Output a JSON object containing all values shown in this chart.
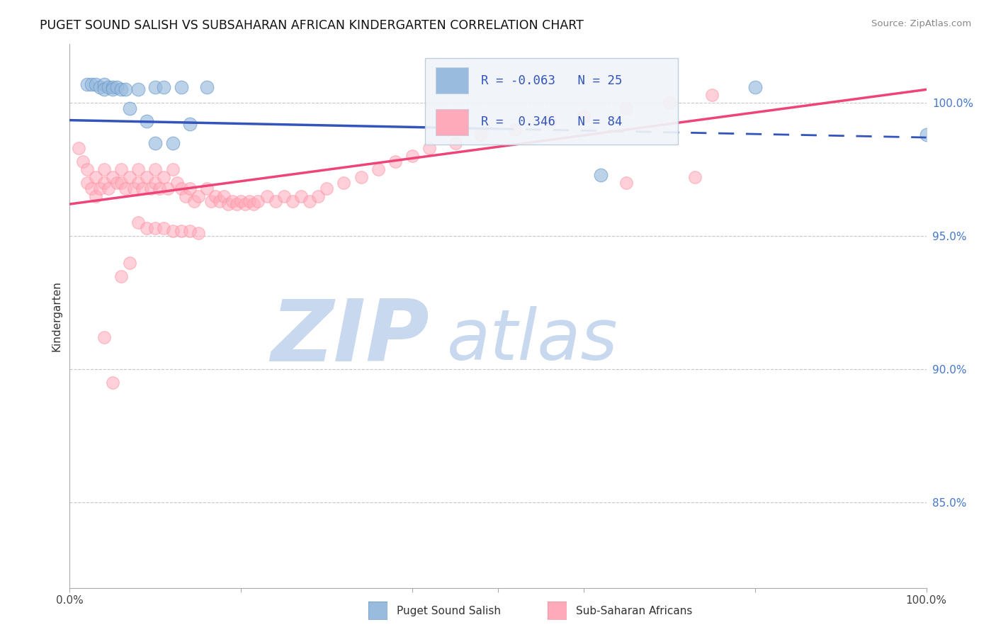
{
  "title": "PUGET SOUND SALISH VS SUBSAHARAN AFRICAN KINDERGARTEN CORRELATION CHART",
  "source_text": "Source: ZipAtlas.com",
  "ylabel": "Kindergarten",
  "watermark_zip": "ZIP",
  "watermark_atlas": "atlas",
  "blue_R": -0.063,
  "blue_N": 25,
  "pink_R": 0.346,
  "pink_N": 84,
  "xmin": 0.0,
  "xmax": 1.0,
  "ymin": 0.818,
  "ymax": 1.022,
  "right_yticks": [
    1.0,
    0.95,
    0.9,
    0.85
  ],
  "right_yticklabels": [
    "100.0%",
    "95.0%",
    "90.0%",
    "85.0%"
  ],
  "blue_line_start_y": 0.9935,
  "blue_line_end_y": 0.987,
  "pink_line_start_y": 0.962,
  "pink_line_end_y": 1.005,
  "blue_scatter_x": [
    0.02,
    0.025,
    0.03,
    0.035,
    0.04,
    0.04,
    0.045,
    0.05,
    0.05,
    0.055,
    0.06,
    0.065,
    0.07,
    0.08,
    0.09,
    0.1,
    0.1,
    0.11,
    0.12,
    0.13,
    0.14,
    0.16,
    0.62,
    0.8,
    1.0
  ],
  "blue_scatter_y": [
    1.007,
    1.007,
    1.007,
    1.006,
    1.007,
    1.005,
    1.006,
    1.006,
    1.005,
    1.006,
    1.005,
    1.005,
    0.998,
    1.005,
    0.993,
    1.006,
    0.985,
    1.006,
    0.985,
    1.006,
    0.992,
    1.006,
    0.973,
    1.006,
    0.988
  ],
  "pink_scatter_x": [
    0.01,
    0.015,
    0.02,
    0.02,
    0.025,
    0.03,
    0.03,
    0.035,
    0.04,
    0.04,
    0.045,
    0.05,
    0.055,
    0.06,
    0.06,
    0.065,
    0.07,
    0.075,
    0.08,
    0.08,
    0.085,
    0.09,
    0.095,
    0.1,
    0.1,
    0.105,
    0.11,
    0.115,
    0.12,
    0.125,
    0.13,
    0.135,
    0.14,
    0.145,
    0.15,
    0.16,
    0.165,
    0.17,
    0.175,
    0.18,
    0.185,
    0.19,
    0.195,
    0.2,
    0.205,
    0.21,
    0.215,
    0.22,
    0.23,
    0.24,
    0.25,
    0.26,
    0.27,
    0.28,
    0.29,
    0.3,
    0.32,
    0.34,
    0.36,
    0.38,
    0.4,
    0.42,
    0.45,
    0.48,
    0.52,
    0.56,
    0.6,
    0.65,
    0.7,
    0.75,
    0.08,
    0.09,
    0.1,
    0.11,
    0.12,
    0.13,
    0.14,
    0.15,
    0.65,
    0.73,
    0.04,
    0.05,
    0.06,
    0.07
  ],
  "pink_scatter_y": [
    0.983,
    0.978,
    0.975,
    0.97,
    0.968,
    0.972,
    0.965,
    0.968,
    0.975,
    0.97,
    0.968,
    0.972,
    0.97,
    0.975,
    0.97,
    0.968,
    0.972,
    0.968,
    0.975,
    0.97,
    0.968,
    0.972,
    0.968,
    0.975,
    0.97,
    0.968,
    0.972,
    0.968,
    0.975,
    0.97,
    0.968,
    0.965,
    0.968,
    0.963,
    0.965,
    0.968,
    0.963,
    0.965,
    0.963,
    0.965,
    0.962,
    0.963,
    0.962,
    0.963,
    0.962,
    0.963,
    0.962,
    0.963,
    0.965,
    0.963,
    0.965,
    0.963,
    0.965,
    0.963,
    0.965,
    0.968,
    0.97,
    0.972,
    0.975,
    0.978,
    0.98,
    0.983,
    0.985,
    0.988,
    0.99,
    0.993,
    0.995,
    0.998,
    1.0,
    1.003,
    0.955,
    0.953,
    0.953,
    0.953,
    0.952,
    0.952,
    0.952,
    0.951,
    0.97,
    0.972,
    0.912,
    0.895,
    0.935,
    0.94
  ],
  "blue_color": "#99BBDD",
  "blue_edge_color": "#6699CC",
  "pink_color": "#FFAABB",
  "pink_edge_color": "#FF8899",
  "blue_line_color": "#3355BB",
  "pink_line_color": "#EE4477",
  "background_color": "#FFFFFF",
  "grid_color": "#C8C8C8",
  "legend_box_color": "#F0F4F8",
  "legend_border_color": "#BBCCDD"
}
